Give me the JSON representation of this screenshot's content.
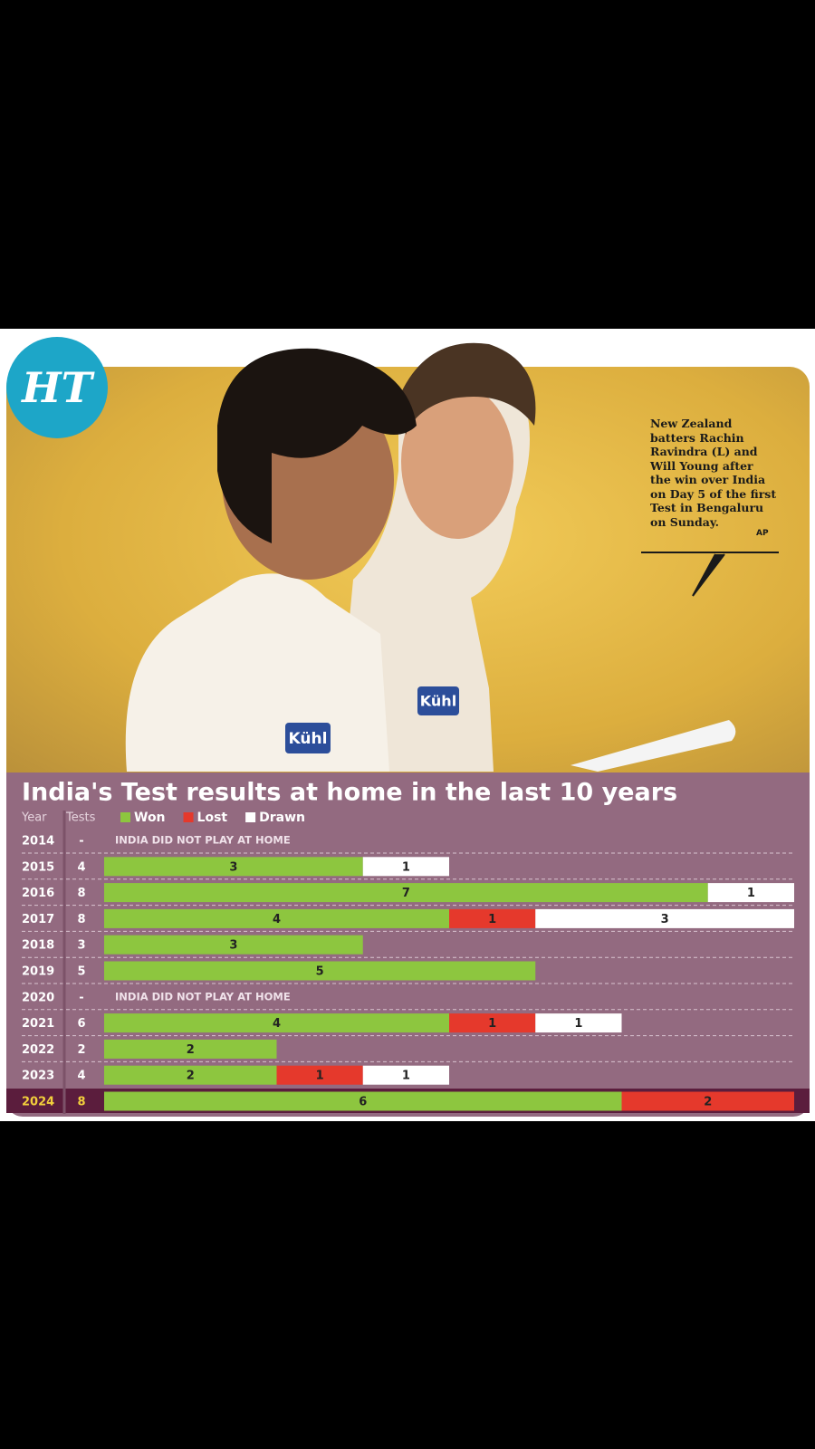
{
  "logo": "HT",
  "caption": "New Zealand batters Rachin Ravindra (L) and Will Young after the win over India on Day 5 of the first Test in Bengaluru on Sunday.",
  "credit": "AP",
  "photo_texts": [
    "Kühl",
    "Kühl"
  ],
  "chart_data": {
    "type": "stacked-bar-horizontal",
    "title": "India's Test results at home in the last 10 years",
    "column_headers": [
      "Year",
      "Tests"
    ],
    "categories": [
      "2014",
      "2015",
      "2016",
      "2017",
      "2018",
      "2019",
      "2020",
      "2021",
      "2022",
      "2023",
      "2024"
    ],
    "tests": [
      "-",
      4,
      8,
      8,
      3,
      5,
      "-",
      6,
      2,
      4,
      8
    ],
    "notes": [
      "INDIA DID NOT PLAY AT HOME",
      null,
      null,
      null,
      null,
      null,
      "INDIA DID NOT PLAY AT HOME",
      null,
      null,
      null,
      null
    ],
    "series": [
      {
        "name": "Won",
        "color": "#8dc63f",
        "values": [
          null,
          3,
          7,
          4,
          3,
          5,
          null,
          4,
          2,
          2,
          6
        ]
      },
      {
        "name": "Lost",
        "color": "#e5392c",
        "values": [
          null,
          null,
          null,
          1,
          null,
          null,
          null,
          1,
          null,
          1,
          2
        ]
      },
      {
        "name": "Drawn",
        "color": "#ffffff",
        "values": [
          null,
          1,
          1,
          3,
          null,
          null,
          null,
          1,
          null,
          1,
          null
        ]
      }
    ],
    "xlim": [
      0,
      8
    ],
    "highlight": 10
  }
}
